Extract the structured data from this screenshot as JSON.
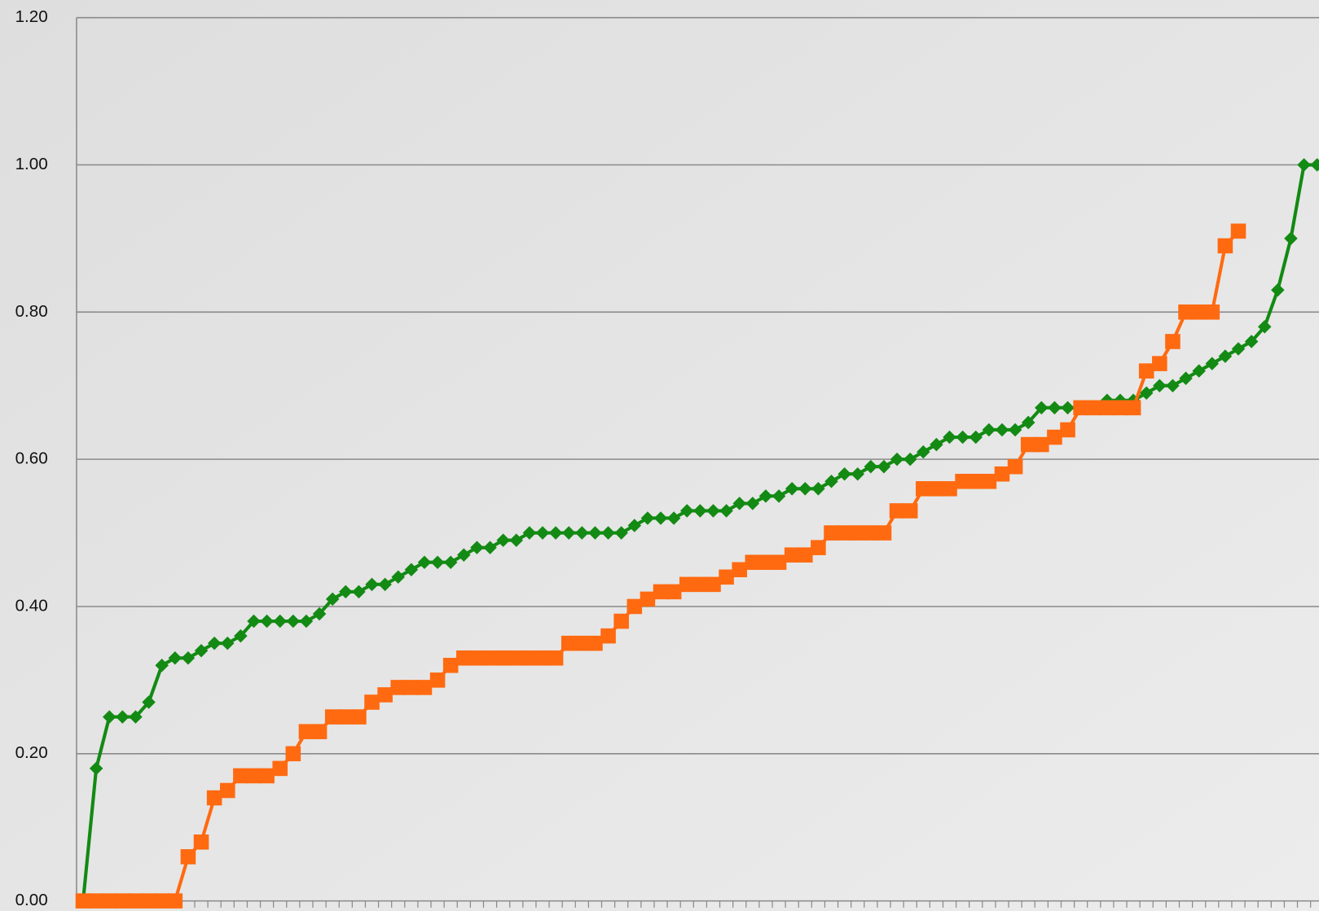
{
  "chart_data": {
    "type": "line",
    "categories": [
      null,
      null,
      null,
      null,
      null,
      null,
      null,
      null,
      null,
      null,
      null,
      null,
      null,
      null,
      null,
      null,
      null,
      null,
      null,
      null,
      null,
      null,
      null,
      null,
      null,
      null,
      null,
      null,
      null,
      null,
      null,
      null,
      null,
      null,
      null,
      null,
      null,
      null,
      null,
      null,
      null,
      null,
      null,
      null,
      null,
      null,
      null,
      null,
      null,
      null,
      null,
      null,
      null,
      null,
      null,
      null,
      null,
      null,
      null,
      null,
      null,
      null,
      null,
      null,
      null,
      null,
      null,
      null,
      null,
      null,
      null,
      null,
      null,
      null,
      null,
      null,
      null,
      null,
      null,
      null,
      null,
      null,
      null,
      null,
      null,
      null,
      null,
      null,
      null,
      null,
      null,
      null,
      null,
      null,
      null
    ],
    "series": [
      {
        "color": "#138a13",
        "marker": "diamond",
        "values": [
          0,
          0.18,
          0.25,
          0.25,
          0.25,
          0.27,
          0.32,
          0.33,
          0.33,
          0.34,
          0.35,
          0.35,
          0.36,
          0.38,
          0.38,
          0.38,
          0.38,
          0.38,
          0.39,
          0.41,
          0.42,
          0.42,
          0.43,
          0.43,
          0.44,
          0.45,
          0.46,
          0.46,
          0.46,
          0.47,
          0.48,
          0.48,
          0.49,
          0.49,
          0.5,
          0.5,
          0.5,
          0.5,
          0.5,
          0.5,
          0.5,
          0.5,
          0.51,
          0.52,
          0.52,
          0.52,
          0.53,
          0.53,
          0.53,
          0.53,
          0.54,
          0.54,
          0.55,
          0.55,
          0.56,
          0.56,
          0.56,
          0.57,
          0.58,
          0.58,
          0.59,
          0.59,
          0.6,
          0.6,
          0.61,
          0.62,
          0.63,
          0.63,
          0.63,
          0.64,
          0.64,
          0.64,
          0.65,
          0.67,
          0.67,
          0.67,
          0.67,
          0.67,
          0.68,
          0.68,
          0.68,
          0.69,
          0.7,
          0.7,
          0.71,
          0.72,
          0.73,
          0.74,
          0.75,
          0.76,
          0.78,
          0.83,
          0.9,
          1.0,
          1.0
        ]
      },
      {
        "color": "#ff6a10",
        "marker": "square",
        "values": [
          0,
          0,
          0,
          0,
          0,
          0,
          0,
          0,
          0.06,
          0.08,
          0.14,
          0.15,
          0.17,
          0.17,
          0.17,
          0.18,
          0.2,
          0.23,
          0.23,
          0.25,
          0.25,
          0.25,
          0.27,
          0.28,
          0.29,
          0.29,
          0.29,
          0.3,
          0.32,
          0.33,
          0.33,
          0.33,
          0.33,
          0.33,
          0.33,
          0.33,
          0.33,
          0.35,
          0.35,
          0.35,
          0.36,
          0.38,
          0.4,
          0.41,
          0.42,
          0.42,
          0.43,
          0.43,
          0.43,
          0.44,
          0.45,
          0.46,
          0.46,
          0.46,
          0.47,
          0.47,
          0.48,
          0.5,
          0.5,
          0.5,
          0.5,
          0.5,
          0.53,
          0.53,
          0.56,
          0.56,
          0.56,
          0.57,
          0.57,
          0.57,
          0.58,
          0.59,
          0.62,
          0.62,
          0.63,
          0.64,
          0.67,
          0.67,
          0.67,
          0.67,
          0.67,
          0.72,
          0.73,
          0.76,
          0.8,
          0.8,
          0.8,
          0.89,
          0.91,
          null,
          null,
          null,
          null,
          null,
          null
        ]
      }
    ],
    "ylim": [
      0,
      1.2
    ],
    "yticks": [
      {
        "value": 0,
        "label": "0.00"
      },
      {
        "value": 0.2,
        "label": "0.20"
      },
      {
        "value": 0.4,
        "label": "0.40"
      },
      {
        "value": 0.6,
        "label": "0.60"
      },
      {
        "value": 0.8,
        "label": "0.80"
      },
      {
        "value": 1.0,
        "label": "1.00"
      },
      {
        "value": 1.2,
        "label": "1.20"
      }
    ],
    "grid": true
  }
}
